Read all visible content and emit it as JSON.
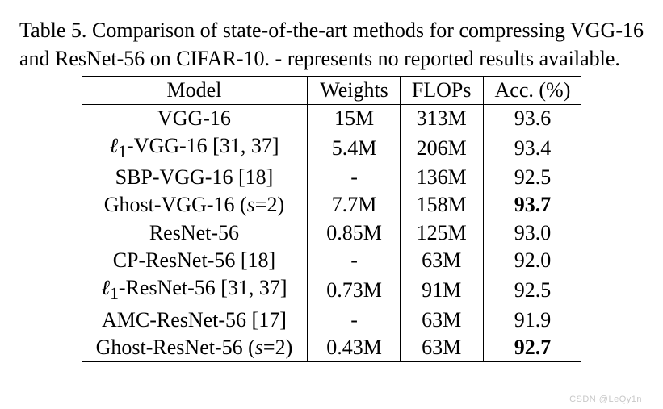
{
  "caption": "Table 5. Comparison of state-of-the-art methods for compressing VGG-16 and ResNet-56 on CIFAR-10. - represents no reported results available.",
  "table": {
    "type": "table",
    "columns": [
      "Model",
      "Weights",
      "FLOPs",
      "Acc. (%)"
    ],
    "col_align": [
      "center",
      "center",
      "center",
      "center"
    ],
    "border_color": "#000000",
    "header_border_width": 1.5,
    "double_rule_after_col": 0,
    "single_rule_after_cols": [
      1,
      2
    ],
    "font_family": "Times New Roman",
    "font_size_pt": 20,
    "background_color": "#ffffff",
    "rows": [
      {
        "cells": [
          "VGG-16",
          "15M",
          "313M",
          "93.6"
        ],
        "section_start": true,
        "bold_cols": []
      },
      {
        "cells": [
          "ℓ1-VGG-16 [31, 37]",
          "5.4M",
          "206M",
          "93.4"
        ],
        "bold_cols": [],
        "italic_sub": "ℓ"
      },
      {
        "cells": [
          "SBP-VGG-16 [18]",
          "-",
          "136M",
          "92.5"
        ],
        "bold_cols": []
      },
      {
        "cells": [
          "Ghost-VGG-16 (s=2)",
          "7.7M",
          "158M",
          "93.7"
        ],
        "bold_cols": [
          3
        ],
        "italic_sub": "s"
      },
      {
        "cells": [
          "ResNet-56",
          "0.85M",
          "125M",
          "93.0"
        ],
        "section_start": true,
        "bold_cols": []
      },
      {
        "cells": [
          "CP-ResNet-56 [18]",
          "-",
          "63M",
          "92.0"
        ],
        "bold_cols": []
      },
      {
        "cells": [
          "ℓ1-ResNet-56 [31, 37]",
          "0.73M",
          "91M",
          "92.5"
        ],
        "bold_cols": [],
        "italic_sub": "ℓ"
      },
      {
        "cells": [
          "AMC-ResNet-56 [17]",
          "-",
          "63M",
          "91.9"
        ],
        "bold_cols": []
      },
      {
        "cells": [
          "Ghost-ResNet-56 (s=2)",
          "0.43M",
          "63M",
          "92.7"
        ],
        "bold_cols": [
          3
        ],
        "italic_sub": "s"
      }
    ]
  },
  "watermark": "CSDN @LeQy1n"
}
